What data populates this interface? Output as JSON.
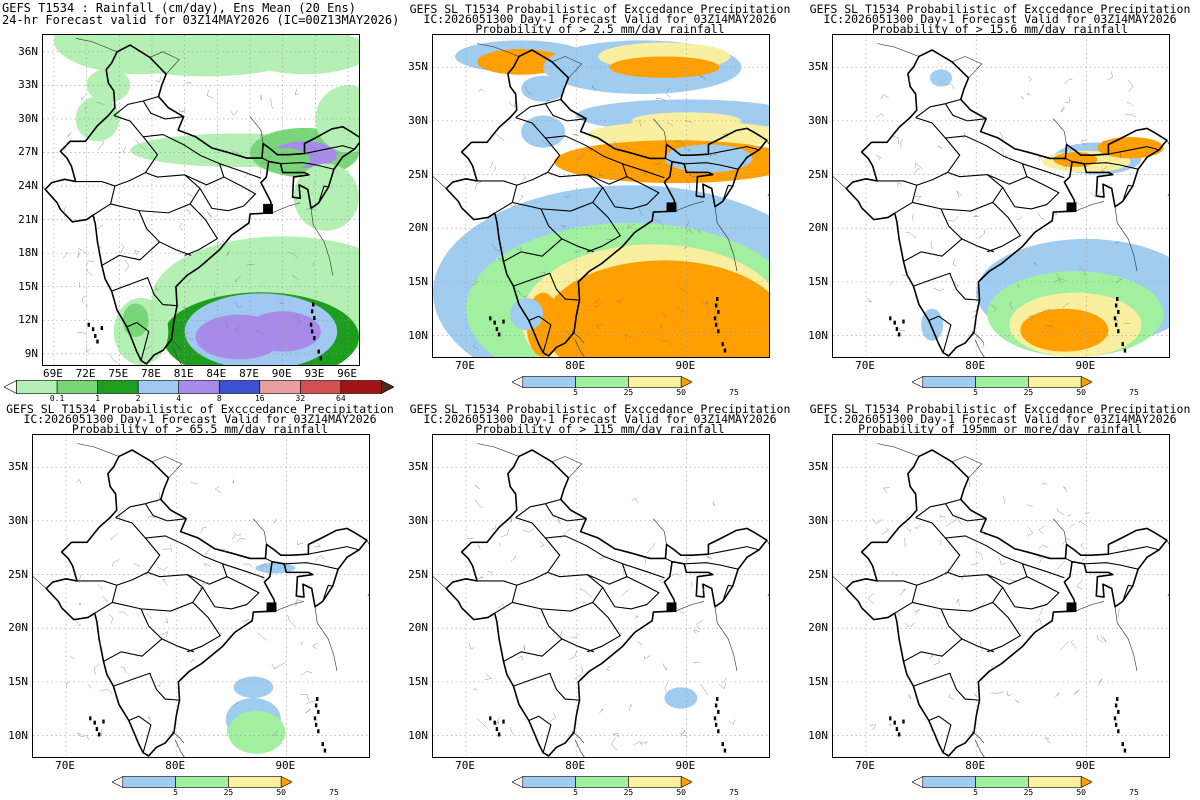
{
  "panels": [
    {
      "id": "p1",
      "title_lines": [
        "GEFS T1534 : Rainfall (cm/day), Ens Mean (20 Ens)",
        "24-hr Forecast valid for 03Z14MAY2026 (IC=00Z13MAY2026)"
      ],
      "lat_labels": [
        "36N",
        "33N",
        "30N",
        "27N",
        "24N",
        "21N",
        "18N",
        "15N",
        "12N",
        "9N"
      ],
      "lon_labels": [
        "69E",
        "72E",
        "75E",
        "78E",
        "81E",
        "84E",
        "87E",
        "90E",
        "93E",
        "96E"
      ],
      "colorbar": "ensmean"
    },
    {
      "id": "p2",
      "title_lines": [
        "GEFS SL T1534 Probabilistic of Exccedance Precipitation",
        "IC:2026051300 Day-1 Forecast Valid for 03Z14MAY2026",
        "Probability of > 2.5 mm/day rainfall"
      ],
      "lat_labels": [
        "35N",
        "30N",
        "25N",
        "20N",
        "15N",
        "10N"
      ],
      "lon_labels": [
        "70E",
        "80E",
        "90E"
      ],
      "colorbar": "prob"
    },
    {
      "id": "p3",
      "title_lines": [
        "GEFS SL T1534 Probabilistic of Exccedance Precipitation",
        "IC:2026051300 Day-1 Forecast Valid for 03Z14MAY2026",
        "Probability of > 15.6 mm/day rainfall"
      ],
      "lat_labels": [
        "35N",
        "30N",
        "25N",
        "20N",
        "15N",
        "10N"
      ],
      "lon_labels": [
        "70E",
        "80E",
        "90E"
      ],
      "colorbar": "prob"
    },
    {
      "id": "p4",
      "title_lines": [
        "GEFS SL T1534 Probabilistic of Excccedance Precipitation",
        "IC:2026051300 Day-1 Forecast Valid for 03Z14MAY2026",
        "Probability of > 65.5 mm/day rainfall"
      ],
      "lat_labels": [
        "35N",
        "30N",
        "25N",
        "20N",
        "15N",
        "10N"
      ],
      "lon_labels": [
        "70E",
        "80E",
        "90E"
      ],
      "colorbar": "prob"
    },
    {
      "id": "p5",
      "title_lines": [
        "GEFS SL T1534 Probabilistic of Exccedance Precipitation",
        "IC:2026051300 Day-1 Forecast Valid for 03Z14MAY2026",
        "Probability of > 115 mm/day rainfall"
      ],
      "lat_labels": [
        "35N",
        "30N",
        "25N",
        "20N",
        "15N",
        "10N"
      ],
      "lon_labels": [
        "70E",
        "80E",
        "90E"
      ],
      "colorbar": "prob"
    },
    {
      "id": "p6",
      "title_lines": [
        "GEFS SL T1534 Probabilistic of Exccedance Precipitation",
        "IC:2026051300 Day-1 Forecast Valid for 03Z14MAY2026",
        "Probability of 195mm or more/day rainfall"
      ],
      "lat_labels": [
        "35N",
        "30N",
        "25N",
        "20N",
        "15N",
        "10N"
      ],
      "lon_labels": [
        "70E",
        "80E",
        "90E"
      ],
      "colorbar": "prob"
    }
  ],
  "colorbars": {
    "ensmean": {
      "ticks": [
        "0.1",
        "1",
        "2",
        "4",
        "8",
        "16",
        "32",
        "64"
      ],
      "colors": [
        "#ffffff",
        "#b4f0b4",
        "#78d678",
        "#1e9e1e",
        "#a0c8f0",
        "#a68ce8",
        "#3c50d2",
        "#e6a0a0",
        "#d25050",
        "#a01414",
        "#4a2a20"
      ]
    },
    "prob": {
      "ticks": [
        "5",
        "25",
        "50",
        "75"
      ],
      "colors": [
        "#ffffff",
        "#a0ccf0",
        "#a0f0a0",
        "#f8f0a0",
        "#ffa000"
      ]
    }
  },
  "colors": {
    "light_green": "#b4f0b4",
    "green": "#78d678",
    "dark_green": "#1e9e1e",
    "light_blue": "#a0c8f0",
    "purple": "#a68ce8",
    "prob_blue": "#a0ccf0",
    "prob_green": "#a0f0a0",
    "prob_yellow": "#f8f0a0",
    "prob_orange": "#ffa000"
  }
}
